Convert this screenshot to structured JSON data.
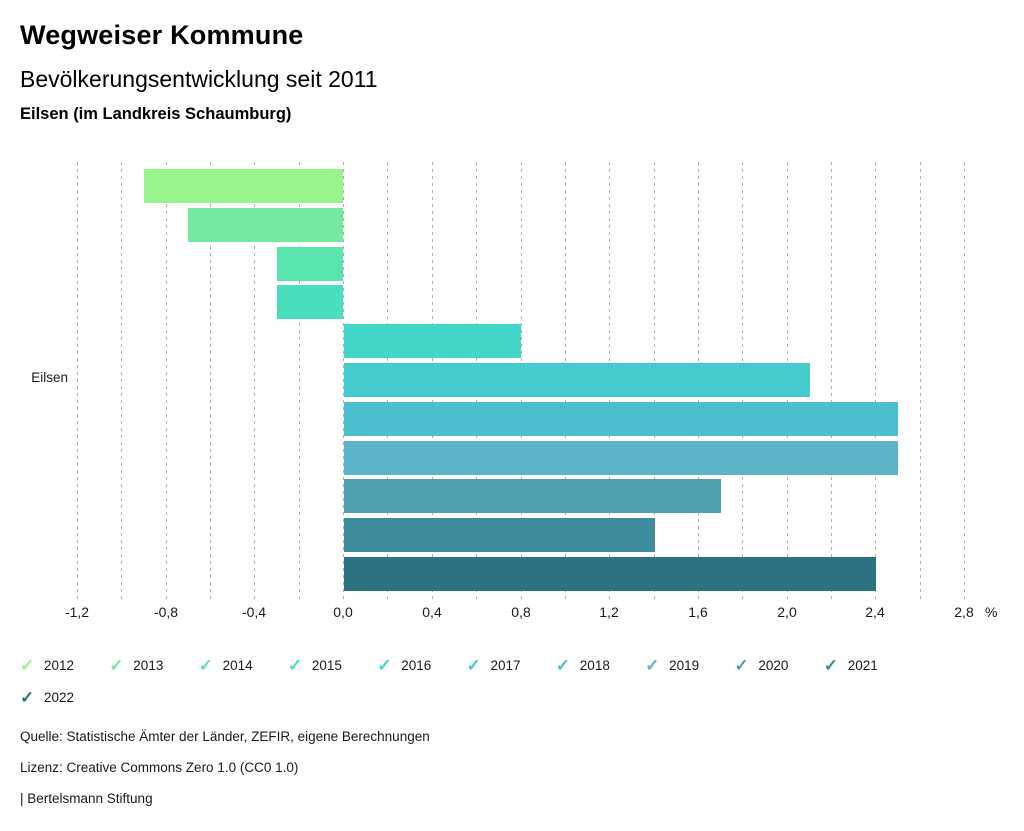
{
  "header": {
    "title": "Wegweiser Kommune",
    "subtitle": "Bevölkerungsentwicklung seit 2011",
    "location": "Eilsen (im Landkreis Schaumburg)"
  },
  "chart_data": {
    "type": "bar",
    "orientation": "horizontal",
    "title": "Bevölkerungsentwicklung seit 2011",
    "group_label": "Eilsen",
    "categories": [
      "2012",
      "2013",
      "2014",
      "2015",
      "2016",
      "2017",
      "2018",
      "2019",
      "2020",
      "2021",
      "2022"
    ],
    "values": [
      -0.9,
      -0.7,
      -0.3,
      -0.3,
      0.8,
      2.1,
      2.5,
      2.5,
      1.7,
      1.4,
      2.4
    ],
    "colors": [
      "#97f58c",
      "#73eb9f",
      "#5ae5ae",
      "#49dfbd",
      "#41d6c7",
      "#44cbcd",
      "#4bbfce",
      "#5db4c8",
      "#4fa0b1",
      "#3d8b9c",
      "#2b7381"
    ],
    "xlim": [
      -1.2,
      2.8
    ],
    "x_tick_labels": [
      "-1,2",
      "-0,8",
      "-0,4",
      "0,0",
      "0,4",
      "0,8",
      "1,2",
      "1,6",
      "2,0",
      "2,4",
      "2,8"
    ],
    "x_tick_values": [
      -1.2,
      -0.8,
      -0.4,
      0.0,
      0.4,
      0.8,
      1.2,
      1.6,
      2.0,
      2.4,
      2.8
    ],
    "x_unit": "%",
    "gridline_step": 0.2,
    "grid": "dashed-vertical",
    "legend_position": "bottom"
  },
  "footer": {
    "source": "Quelle: Statistische Ämter der Länder, ZEFIR, eigene Berechnungen",
    "license": "Lizenz: Creative Commons Zero 1.0 (CC0 1.0)",
    "attribution": "| Bertelsmann Stiftung"
  }
}
